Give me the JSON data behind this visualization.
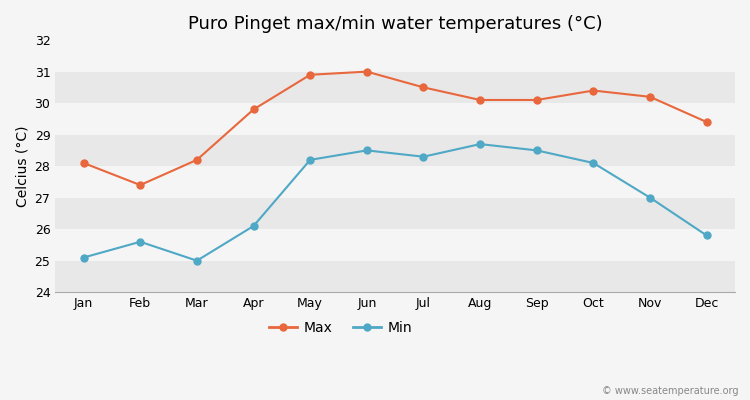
{
  "title": "Puro Pinget max/min water temperatures (°C)",
  "ylabel": "Celcius (°C)",
  "months": [
    "Jan",
    "Feb",
    "Mar",
    "Apr",
    "May",
    "Jun",
    "Jul",
    "Aug",
    "Sep",
    "Oct",
    "Nov",
    "Dec"
  ],
  "max_temps": [
    28.1,
    27.4,
    28.2,
    29.8,
    30.9,
    31.0,
    30.5,
    30.1,
    30.1,
    30.4,
    30.2,
    29.4
  ],
  "min_temps": [
    25.1,
    25.6,
    25.0,
    26.1,
    28.2,
    28.5,
    28.3,
    28.7,
    28.5,
    28.1,
    27.0,
    25.8
  ],
  "max_color": "#e8673c",
  "min_color": "#4fa8c5",
  "ylim": [
    24,
    32
  ],
  "yticks": [
    24,
    25,
    26,
    27,
    28,
    29,
    30,
    31,
    32
  ],
  "bg_color": "#f5f5f5",
  "band_colors": [
    "#e8e8e8",
    "#f5f5f5"
  ],
  "grid_color": "#ffffff",
  "watermark": "© www.seatemperature.org",
  "legend_max": "Max",
  "legend_min": "Min",
  "title_fontsize": 13,
  "axis_fontsize": 9,
  "ylabel_fontsize": 10
}
